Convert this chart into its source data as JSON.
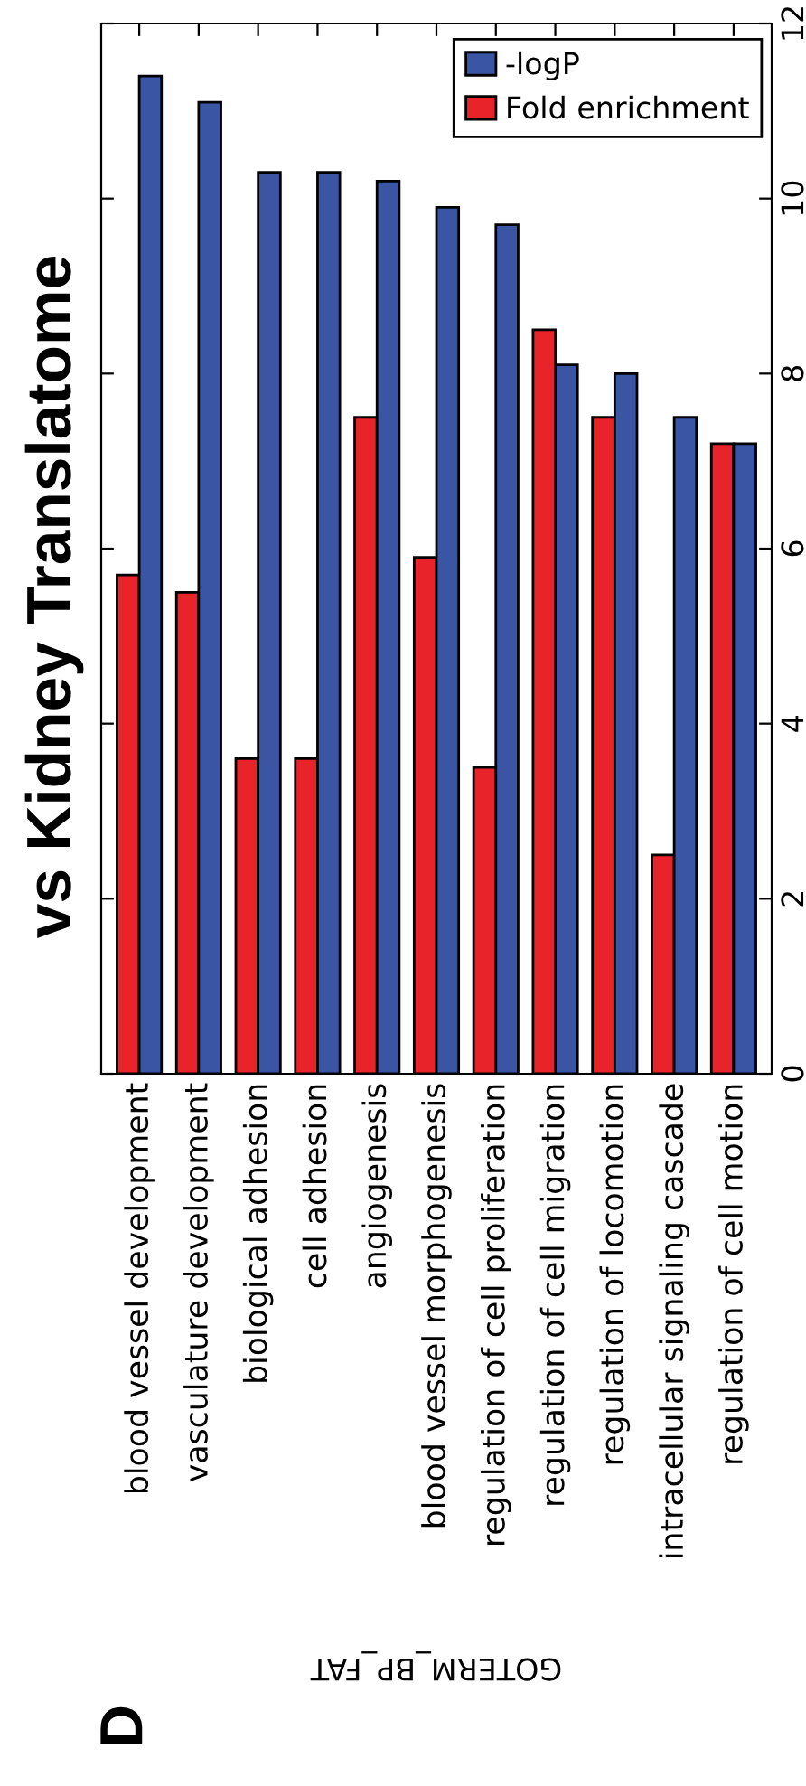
{
  "chart_data": {
    "type": "bar",
    "title": "vs Kidney Translatome",
    "xlabel": "GOTERM_BP_FAT",
    "categories": [
      "blood vessel development",
      "vasculature development",
      "biological adhesion",
      "cell adhesion",
      "angiogenesis",
      "blood vessel morphogenesis",
      "regulation of cell proliferation",
      "regulation of cell migration",
      "regulation of locomotion",
      "intracellular signaling cascade",
      "regulation of cell motion"
    ],
    "series": [
      {
        "name": "Fold enrichment",
        "color": "#e8232a",
        "values": [
          5.7,
          5.5,
          3.6,
          3.6,
          7.5,
          5.9,
          3.5,
          8.5,
          7.5,
          2.5,
          7.2
        ]
      },
      {
        "name": "-logP",
        "color": "#3a55a4",
        "values": [
          11.4,
          11.1,
          10.3,
          10.3,
          10.2,
          9.9,
          9.7,
          8.1,
          8.0,
          7.5,
          7.2
        ]
      }
    ],
    "ylim": [
      0,
      12
    ],
    "yticks": [
      0,
      2,
      4,
      6,
      8,
      10,
      12
    ],
    "legend": "top right",
    "annotations": [
      "D"
    ]
  }
}
